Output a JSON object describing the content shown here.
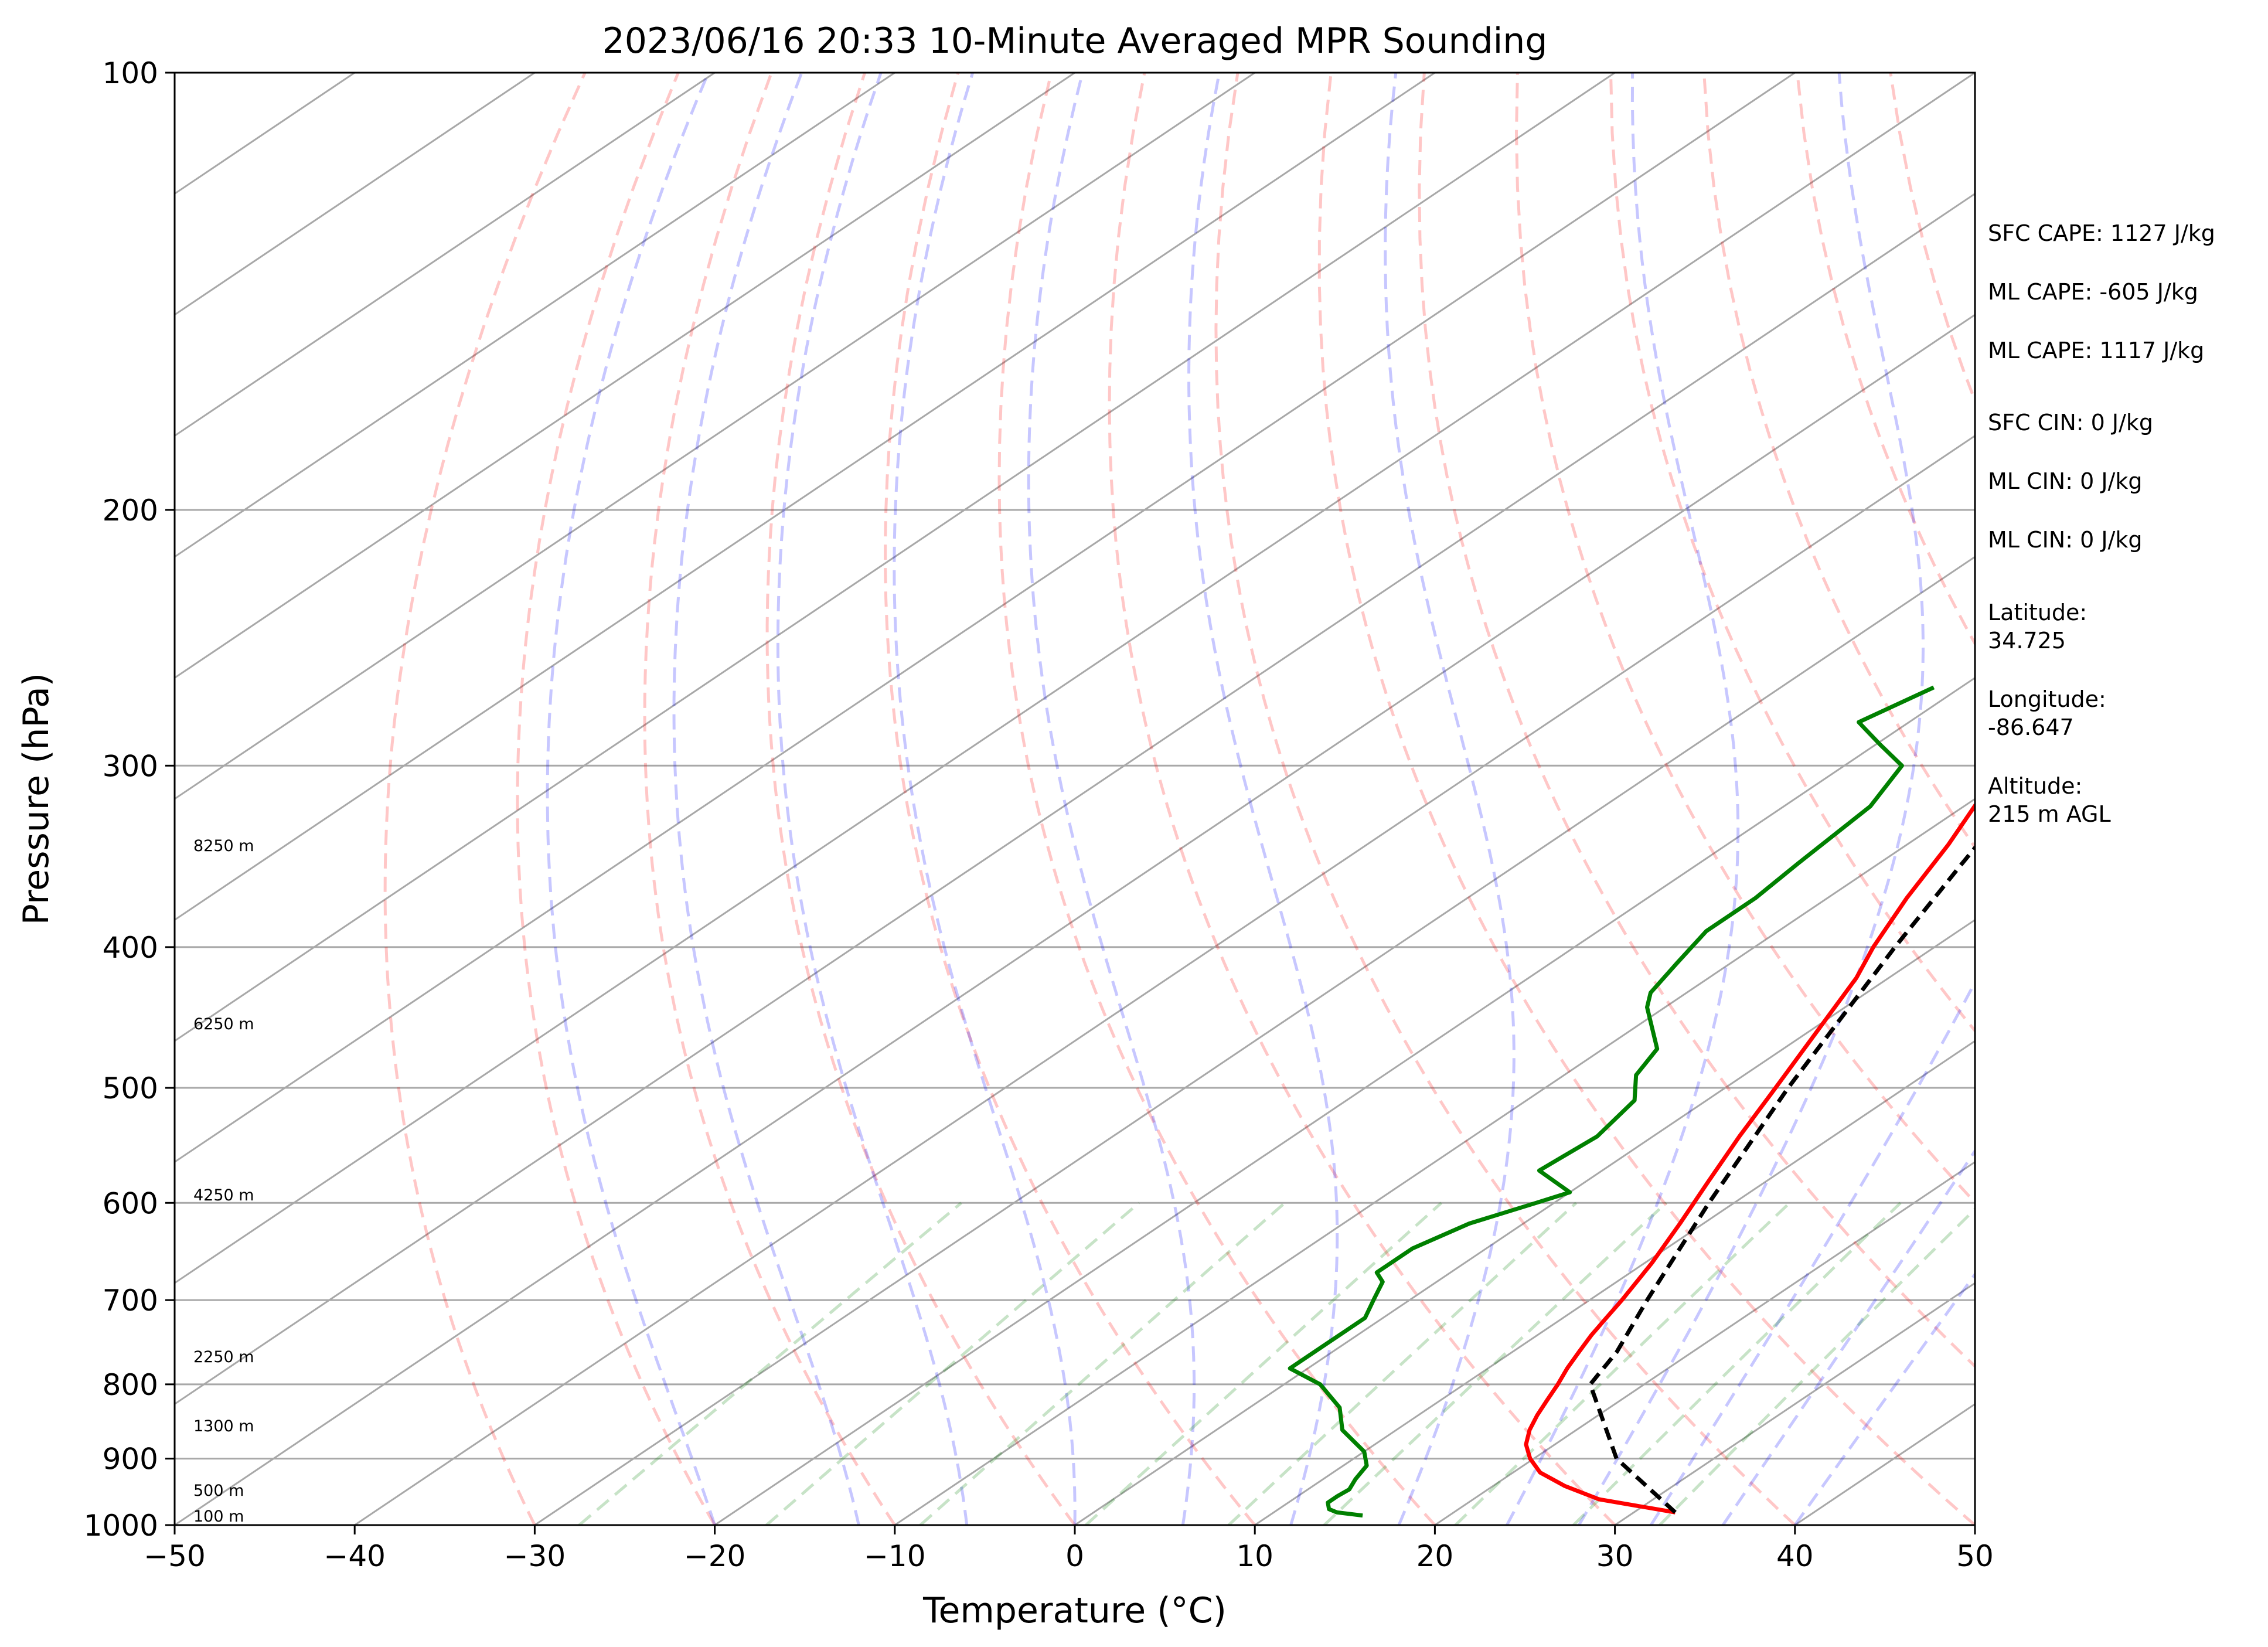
{
  "chart_data": {
    "type": "line",
    "diagram": "skew-T log-P",
    "title": "2023/06/16 20:33 10-Minute Averaged MPR Sounding",
    "xlabel": "Temperature (°C)",
    "ylabel": "Pressure (hPa)",
    "xlim": [
      -50,
      50
    ],
    "ylim": [
      1000,
      100
    ],
    "y_scale": "log",
    "grid": true,
    "x_ticks": [
      "−50",
      "−40",
      "−30",
      "−20",
      "−10",
      "0",
      "10",
      "20",
      "30",
      "40",
      "50"
    ],
    "y_ticks": [
      "100",
      "200",
      "300",
      "400",
      "500",
      "600",
      "700",
      "800",
      "900",
      "1000"
    ],
    "height_labels": [
      "8250 m",
      "6250 m",
      "4250 m",
      "2250 m",
      "1300 m",
      "500 m",
      "100 m"
    ],
    "series": [
      {
        "role": "temperature",
        "color": "#ff0000",
        "style": "solid",
        "points": [
          [
            980,
            32.3
          ],
          [
            960,
            27
          ],
          [
            940,
            24
          ],
          [
            920,
            21.5
          ],
          [
            900,
            19.8
          ],
          [
            880,
            18.4
          ],
          [
            860,
            17.4
          ],
          [
            840,
            16.6
          ],
          [
            820,
            15.9
          ],
          [
            800,
            15.2
          ],
          [
            780,
            14.4
          ],
          [
            760,
            13.7
          ],
          [
            740,
            13.0
          ],
          [
            720,
            12.4
          ],
          [
            700,
            11.8
          ],
          [
            660,
            10.4
          ],
          [
            620,
            8.7
          ],
          [
            580,
            6.8
          ],
          [
            540,
            4.8
          ],
          [
            500,
            2.8
          ],
          [
            460,
            0.6
          ],
          [
            420,
            -1.8
          ],
          [
            400,
            -3.4
          ],
          [
            370,
            -5.6
          ],
          [
            340,
            -7.7
          ],
          [
            310,
            -10.3
          ],
          [
            290,
            -12.6
          ],
          [
            270,
            -15.5
          ]
        ]
      },
      {
        "role": "dewpoint",
        "color": "#008000",
        "style": "solid",
        "points": [
          [
            985,
            15.2
          ],
          [
            980,
            13.5
          ],
          [
            975,
            12.8
          ],
          [
            965,
            12.2
          ],
          [
            955,
            12.2
          ],
          [
            945,
            12.3
          ],
          [
            930,
            11.8
          ],
          [
            910,
            11.3
          ],
          [
            890,
            10
          ],
          [
            860,
            7
          ],
          [
            830,
            5
          ],
          [
            800,
            2
          ],
          [
            780,
            -1
          ],
          [
            760,
            -1
          ],
          [
            720,
            -1
          ],
          [
            700,
            -2
          ],
          [
            680,
            -3
          ],
          [
            670,
            -4.1
          ],
          [
            645,
            -4.1
          ],
          [
            620,
            -3.0
          ],
          [
            600,
            -1.0
          ],
          [
            590,
            0.0
          ],
          [
            570,
            -3.5
          ],
          [
            540,
            -3.1
          ],
          [
            510,
            -4.0
          ],
          [
            490,
            -6
          ],
          [
            470,
            -7
          ],
          [
            440,
            -11
          ],
          [
            430,
            -12
          ],
          [
            410,
            -13
          ],
          [
            390,
            -14
          ],
          [
            370,
            -14
          ],
          [
            350,
            -14.5
          ],
          [
            320,
            -15.2
          ],
          [
            300,
            -16.8
          ],
          [
            290,
            -19.8
          ],
          [
            280,
            -22.8
          ],
          [
            265,
            -21.5
          ]
        ]
      },
      {
        "role": "parcel",
        "color": "#000000",
        "style": "dashed",
        "points": [
          [
            980,
            32.3
          ],
          [
            900,
            24.6
          ],
          [
            800,
            17
          ],
          [
            760,
            15.8
          ],
          [
            700,
            13.2
          ],
          [
            600,
            8.6
          ],
          [
            500,
            3.5
          ],
          [
            400,
            -2.2
          ],
          [
            350,
            -5.4
          ],
          [
            300,
            -9
          ],
          [
            270,
            -11.6
          ]
        ]
      }
    ]
  },
  "info_panel": [
    {
      "type": "single",
      "text": "SFC CAPE: 1127 J/kg"
    },
    {
      "type": "single",
      "text": "ML CAPE: -605 J/kg"
    },
    {
      "type": "single",
      "text": "ML CAPE: 1117 J/kg"
    },
    {
      "type": "single",
      "text": "SFC CIN: 0 J/kg"
    },
    {
      "type": "single",
      "text": "ML CIN: 0 J/kg"
    },
    {
      "type": "single",
      "text": "ML CIN: 0 J/kg"
    },
    {
      "type": "pair",
      "label": "Latitude:",
      "value": "34.725"
    },
    {
      "type": "pair",
      "label": "Longitude:",
      "value": "-86.647"
    },
    {
      "type": "pair",
      "label": "Altitude:",
      "value": "215 m AGL"
    }
  ]
}
